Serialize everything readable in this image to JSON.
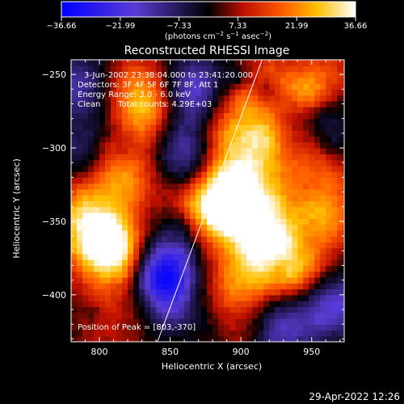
{
  "chart_data": {
    "type": "heatmap",
    "title": "Reconstructed RHESSI Image",
    "colorbar": {
      "ticks": [
        "−36.66",
        "−21.99",
        "−7.33",
        "7.33",
        "21.99",
        "36.66"
      ],
      "tick_values": [
        -36.66,
        -21.99,
        -7.33,
        7.33,
        21.99,
        36.66
      ],
      "range": [
        -36.66,
        36.66
      ],
      "unit_prefix": "(photons cm",
      "unit_e1": "−2",
      "unit_mid1": " s",
      "unit_e2": "−1",
      "unit_mid2": " asec",
      "unit_e3": "−2",
      "unit_suffix": ")"
    },
    "xlabel": "Heliocentric X (arcsec)",
    "ylabel": "Heliocentric Y (arcsec)",
    "xlim": [
      780,
      973
    ],
    "ylim": [
      -432,
      -240
    ],
    "x_ticks": [
      800,
      850,
      900,
      950
    ],
    "y_ticks": [
      -250,
      -300,
      -350,
      -400
    ],
    "x_tick_labels": [
      "800",
      "850",
      "900",
      "950"
    ],
    "y_tick_labels": [
      "−250",
      "−300",
      "−350",
      "−400"
    ],
    "annotations": {
      "line1": "3-Jun-2002 23:38:04.000 to 23:41:20.000",
      "line2": "Detectors: 3F 4F 5F 6F 7F 8F, Att 1",
      "line3": "Energy Range: 3.0 - 6.0 keV",
      "line4_a": "Clean",
      "line4_b": "Total counts: 4.29E+03",
      "peak": "Position of Peak = [803,-370]"
    },
    "peak": [
      803,
      -370
    ],
    "sources": [
      {
        "x": 805,
        "y": -368,
        "amp": 36.66
      },
      {
        "x": 792,
        "y": -345,
        "amp": 24
      },
      {
        "x": 816,
        "y": -318,
        "amp": 22
      },
      {
        "x": 833,
        "y": -278,
        "amp": 20
      },
      {
        "x": 828,
        "y": -258,
        "amp": 15
      },
      {
        "x": 897,
        "y": -343,
        "amp": 32
      },
      {
        "x": 923,
        "y": -360,
        "amp": 28
      },
      {
        "x": 886,
        "y": -330,
        "amp": 26
      },
      {
        "x": 902,
        "y": -390,
        "amp": 20
      },
      {
        "x": 942,
        "y": -385,
        "amp": 20
      },
      {
        "x": 913,
        "y": -305,
        "amp": 20
      },
      {
        "x": 892,
        "y": -282,
        "amp": 18
      },
      {
        "x": 922,
        "y": -255,
        "amp": 17
      },
      {
        "x": 960,
        "y": -250,
        "amp": 14
      },
      {
        "x": 955,
        "y": -315,
        "amp": 14
      },
      {
        "x": 962,
        "y": -345,
        "amp": 14
      },
      {
        "x": 870,
        "y": -410,
        "amp": 14
      },
      {
        "x": 810,
        "y": -415,
        "amp": 12
      }
    ],
    "negative_regions": [
      {
        "x": 866,
        "y": -262,
        "amp": -24
      },
      {
        "x": 858,
        "y": -300,
        "amp": -20
      },
      {
        "x": 846,
        "y": -382,
        "amp": -28
      },
      {
        "x": 855,
        "y": -402,
        "amp": -22
      },
      {
        "x": 966,
        "y": -405,
        "amp": -22
      },
      {
        "x": 930,
        "y": -420,
        "amp": -16
      },
      {
        "x": 787,
        "y": -258,
        "amp": -14
      },
      {
        "x": 795,
        "y": -298,
        "amp": -12
      },
      {
        "x": 968,
        "y": -285,
        "amp": -10
      }
    ],
    "limb_line": [
      [
        841,
        -432
      ],
      [
        915,
        -240
      ]
    ]
  },
  "footer": {
    "timestamp": "29-Apr-2022 12:26"
  }
}
